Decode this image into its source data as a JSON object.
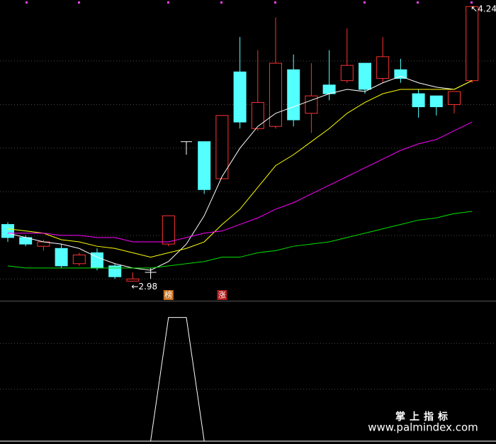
{
  "chart_data": [
    {
      "type": "candlestick",
      "open": [
        3.24,
        3.18,
        3.14,
        3.13,
        3.06,
        3.11,
        3.05,
        2.98,
        3.02,
        3.15,
        3.62,
        3.62,
        3.45,
        3.94,
        3.68,
        3.69,
        3.95,
        3.75,
        3.88,
        3.9,
        3.98,
        3.91,
        3.95,
        3.84,
        3.83,
        3.79,
        3.9
      ],
      "high": [
        3.25,
        3.19,
        3.17,
        3.15,
        3.11,
        3.13,
        3.06,
        3.02,
        3.04,
        3.28,
        3.62,
        3.62,
        3.74,
        4.1,
        4.04,
        4.19,
        4.02,
        3.98,
        4.04,
        4.14,
        3.98,
        4.1,
        4.0,
        3.86,
        3.83,
        3.85,
        4.24
      ],
      "low": [
        3.16,
        3.14,
        3.12,
        3.04,
        3.05,
        3.03,
        2.99,
        2.98,
        2.99,
        3.14,
        3.56,
        3.38,
        3.45,
        3.68,
        3.67,
        3.68,
        3.69,
        3.66,
        3.81,
        3.89,
        3.84,
        3.89,
        3.89,
        3.73,
        3.74,
        3.75,
        3.89
      ],
      "close": [
        3.18,
        3.15,
        3.16,
        3.05,
        3.1,
        3.04,
        3.0,
        2.99,
        3.02,
        3.28,
        3.62,
        3.4,
        3.74,
        3.71,
        3.8,
        3.98,
        3.72,
        3.83,
        3.84,
        3.97,
        3.86,
        4.01,
        3.91,
        3.78,
        3.78,
        3.85,
        4.24
      ],
      "up_color": "#ff3232",
      "down_color": "#54ffff",
      "flat_color": "#ffffff",
      "series": [
        {
          "color": "#ffffff",
          "values": [
            3.2,
            3.18,
            3.16,
            3.15,
            3.13,
            3.09,
            3.06,
            3.04,
            3.03,
            3.07,
            3.15,
            3.28,
            3.46,
            3.59,
            3.69,
            3.75,
            3.78,
            3.81,
            3.84,
            3.86,
            3.85,
            3.89,
            3.92,
            3.89,
            3.87,
            3.86,
            3.9
          ]
        },
        {
          "color": "#ffff00",
          "values": [
            3.22,
            3.21,
            3.2,
            3.17,
            3.16,
            3.14,
            3.13,
            3.11,
            3.09,
            3.11,
            3.13,
            3.16,
            3.24,
            3.31,
            3.41,
            3.51,
            3.56,
            3.62,
            3.68,
            3.75,
            3.8,
            3.84,
            3.86,
            3.86,
            3.86,
            3.86,
            3.9
          ]
        },
        {
          "color": "#ff00ff",
          "values": [
            3.2,
            3.2,
            3.2,
            3.19,
            3.19,
            3.18,
            3.18,
            3.16,
            3.16,
            3.16,
            3.18,
            3.2,
            3.21,
            3.24,
            3.27,
            3.31,
            3.34,
            3.38,
            3.42,
            3.46,
            3.5,
            3.54,
            3.58,
            3.61,
            3.63,
            3.67,
            3.71
          ]
        },
        {
          "color": "#00e000",
          "values": [
            3.05,
            3.04,
            3.04,
            3.04,
            3.04,
            3.04,
            3.04,
            3.04,
            3.04,
            3.05,
            3.06,
            3.07,
            3.09,
            3.09,
            3.11,
            3.12,
            3.14,
            3.15,
            3.16,
            3.18,
            3.2,
            3.22,
            3.24,
            3.26,
            3.27,
            3.29,
            3.3
          ]
        }
      ],
      "ylim": [
        2.89,
        4.27
      ],
      "yticks": [
        2.99,
        3.19,
        3.39,
        3.59,
        3.79,
        3.99
      ],
      "grid": true,
      "low_label": "←2.98",
      "high_label": "↖4.24",
      "tags": [
        {
          "index": 9,
          "text": "榜",
          "color": "#c8701e"
        },
        {
          "index": 12,
          "text": "涨",
          "color": "#b01818"
        }
      ]
    },
    {
      "type": "line",
      "color": "#ffffff",
      "values": [
        0,
        0,
        0,
        0,
        0,
        0,
        0,
        0,
        0,
        1,
        1,
        0,
        0,
        0,
        0,
        0,
        0,
        0,
        0,
        0,
        0,
        0,
        0,
        0,
        0,
        0,
        0
      ],
      "ylim": [
        0,
        1.13
      ],
      "yticks": [
        0.42,
        0.79
      ],
      "grid": true,
      "watermark": [
        "掌上指标",
        "www.palmindex.com"
      ]
    }
  ]
}
